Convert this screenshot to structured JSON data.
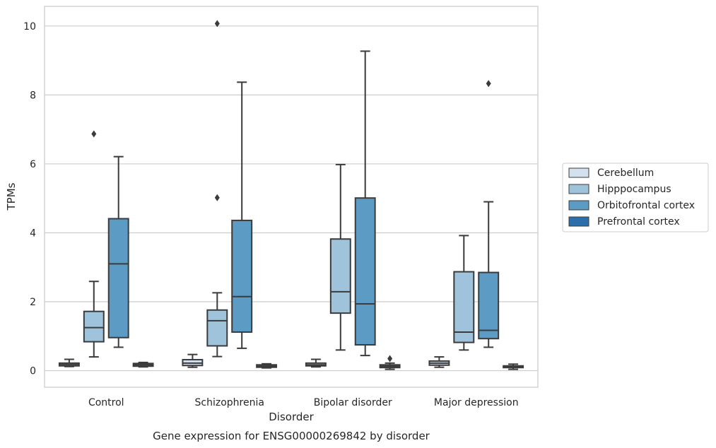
{
  "chart_data": {
    "type": "box",
    "xlabel": "Disorder",
    "ylabel": "TPMs",
    "caption": "Gene expression for ENSG00000269842 by disorder",
    "ylim": [
      -0.48,
      10.57
    ],
    "yticks": [
      0,
      2,
      4,
      6,
      8,
      10
    ],
    "ytick_labels": [
      "0",
      "2",
      "4",
      "6",
      "8",
      "10"
    ],
    "grid": "horizontal",
    "legend_position": "right",
    "categories": [
      "Control",
      "Schizophrenia",
      "Bipolar disorder",
      "Major depression"
    ],
    "series": [
      {
        "name": "Cerebellum",
        "color": "#d3e1ef",
        "boxes": [
          {
            "whislo": 0.12,
            "q1": 0.14,
            "med": 0.18,
            "q3": 0.22,
            "whishi": 0.33,
            "fliers": []
          },
          {
            "whislo": 0.1,
            "q1": 0.15,
            "med": 0.22,
            "q3": 0.32,
            "whishi": 0.47,
            "fliers": []
          },
          {
            "whislo": 0.11,
            "q1": 0.14,
            "med": 0.17,
            "q3": 0.22,
            "whishi": 0.33,
            "fliers": []
          },
          {
            "whislo": 0.1,
            "q1": 0.16,
            "med": 0.22,
            "q3": 0.28,
            "whishi": 0.4,
            "fliers": []
          }
        ]
      },
      {
        "name": "Hipppocampus",
        "color": "#9ec3db",
        "boxes": [
          {
            "whislo": 0.4,
            "q1": 0.84,
            "med": 1.25,
            "q3": 1.72,
            "whishi": 2.59,
            "fliers": [
              6.87
            ]
          },
          {
            "whislo": 0.41,
            "q1": 0.72,
            "med": 1.45,
            "q3": 1.76,
            "whishi": 2.26,
            "fliers": [
              5.02,
              10.07
            ]
          },
          {
            "whislo": 0.6,
            "q1": 1.67,
            "med": 2.29,
            "q3": 3.82,
            "whishi": 5.98,
            "fliers": []
          },
          {
            "whislo": 0.6,
            "q1": 0.82,
            "med": 1.12,
            "q3": 2.87,
            "whishi": 3.92,
            "fliers": []
          }
        ]
      },
      {
        "name": "Orbitofrontal cortex",
        "color": "#5b9bc4",
        "boxes": [
          {
            "whislo": 0.68,
            "q1": 0.96,
            "med": 3.1,
            "q3": 4.41,
            "whishi": 6.21,
            "fliers": []
          },
          {
            "whislo": 0.65,
            "q1": 1.12,
            "med": 2.15,
            "q3": 4.36,
            "whishi": 8.37,
            "fliers": []
          },
          {
            "whislo": 0.44,
            "q1": 0.75,
            "med": 1.94,
            "q3": 5.01,
            "whishi": 9.27,
            "fliers": []
          },
          {
            "whislo": 0.68,
            "q1": 0.93,
            "med": 1.17,
            "q3": 2.85,
            "whishi": 4.9,
            "fliers": [
              8.33
            ]
          }
        ]
      },
      {
        "name": "Prefrontal cortex",
        "color": "#2d6fab",
        "boxes": [
          {
            "whislo": 0.11,
            "q1": 0.13,
            "med": 0.17,
            "q3": 0.21,
            "whishi": 0.24,
            "fliers": []
          },
          {
            "whislo": 0.08,
            "q1": 0.1,
            "med": 0.13,
            "q3": 0.17,
            "whishi": 0.2,
            "fliers": []
          },
          {
            "whislo": 0.04,
            "q1": 0.09,
            "med": 0.13,
            "q3": 0.17,
            "whishi": 0.22,
            "fliers": [
              0.35
            ]
          },
          {
            "whislo": 0.04,
            "q1": 0.09,
            "med": 0.12,
            "q3": 0.14,
            "whishi": 0.19,
            "fliers": []
          }
        ]
      }
    ]
  }
}
